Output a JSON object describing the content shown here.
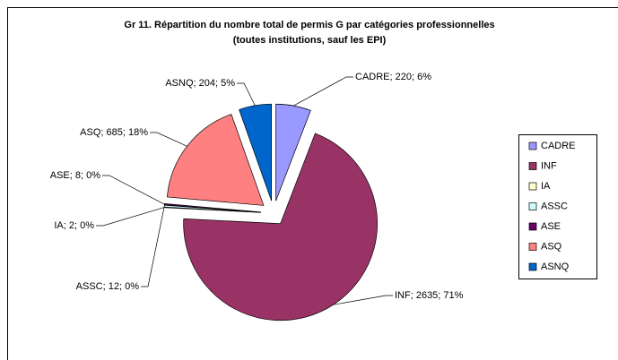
{
  "chart_data": {
    "type": "pie",
    "title": [
      "Gr 11. Répartition du nombre total de permis G par catégories professionnelles",
      "(toutes institutions, sauf les EPI)"
    ],
    "categories": [
      "CADRE",
      "INF",
      "IA",
      "ASSC",
      "ASE",
      "ASQ",
      "ASNQ"
    ],
    "values": [
      220,
      2635,
      2,
      12,
      8,
      685,
      204
    ],
    "value_labels": [
      "CADRE; 220; 6%",
      "INF; 2635; 71%",
      "IA; 2; 0%",
      "ASSC; 12; 0%",
      "ASE; 8; 0%",
      "ASQ; 685; 18%",
      "ASNQ; 204; 5%"
    ],
    "colors": [
      "#9999ff",
      "#993366",
      "#ffffcc",
      "#ccffff",
      "#660066",
      "#ff8080",
      "#0066cc"
    ],
    "legend": "right"
  }
}
